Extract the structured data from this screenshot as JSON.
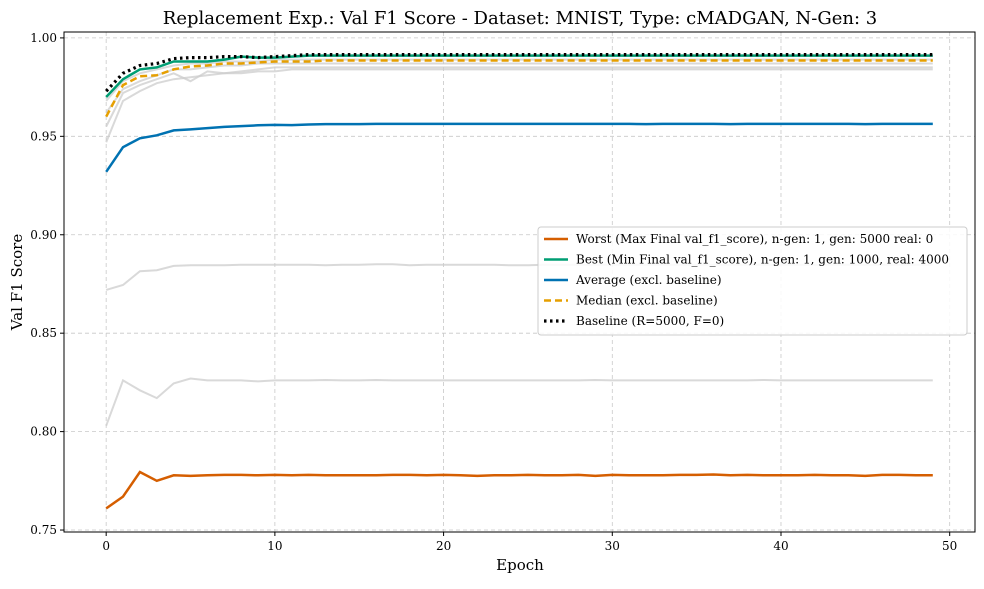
{
  "chart_data": {
    "type": "line",
    "title": "Replacement Exp.: Val F1 Score - Dataset: MNIST, Type: cMADGAN, N-Gen: 3",
    "xlabel": "Epoch",
    "ylabel": "Val F1 Score",
    "xlim": [
      -2.5,
      51.5
    ],
    "ylim": [
      0.749,
      1.003
    ],
    "xticks": [
      0,
      10,
      20,
      30,
      40,
      50
    ],
    "xtick_labels": [
      "0",
      "10",
      "20",
      "30",
      "40",
      "50"
    ],
    "yticks": [
      0.75,
      0.8,
      0.85,
      0.9,
      0.95,
      1.0
    ],
    "ytick_labels": [
      "0.75",
      "0.80",
      "0.85",
      "0.90",
      "0.95",
      "1.00"
    ],
    "grid": true,
    "legend_position": "center-right",
    "colors": {
      "worst": "#d55e00",
      "best": "#009e73",
      "average": "#0072b2",
      "median": "#e69f00",
      "baseline": "#000000",
      "background_runs": "#cccccc"
    },
    "x": [
      0,
      1,
      2,
      3,
      4,
      5,
      6,
      7,
      8,
      9,
      10,
      11,
      12,
      13,
      14,
      15,
      16,
      17,
      18,
      19,
      20,
      21,
      22,
      23,
      24,
      25,
      26,
      27,
      28,
      29,
      30,
      31,
      32,
      33,
      34,
      35,
      36,
      37,
      38,
      39,
      40,
      41,
      42,
      43,
      44,
      45,
      46,
      47,
      48,
      49
    ],
    "background_series": [
      {
        "values": [
          0.803,
          0.826,
          0.821,
          0.817,
          0.8245,
          0.827,
          0.826,
          0.826,
          0.826,
          0.8255,
          0.826,
          0.826,
          0.826,
          0.8262,
          0.826,
          0.826,
          0.8262,
          0.826,
          0.826,
          0.826,
          0.826,
          0.826,
          0.826,
          0.826,
          0.826,
          0.826,
          0.826,
          0.826,
          0.826,
          0.8262,
          0.826,
          0.826,
          0.826,
          0.826,
          0.826,
          0.826,
          0.826,
          0.826,
          0.826,
          0.8262,
          0.826,
          0.826,
          0.826,
          0.826,
          0.826,
          0.826,
          0.826,
          0.826,
          0.826,
          0.826
        ]
      },
      {
        "values": [
          0.872,
          0.8745,
          0.8815,
          0.882,
          0.8842,
          0.8845,
          0.8845,
          0.8845,
          0.8848,
          0.8848,
          0.8848,
          0.8848,
          0.8848,
          0.8845,
          0.8848,
          0.8848,
          0.885,
          0.885,
          0.8845,
          0.8848,
          0.8848,
          0.8848,
          0.8848,
          0.8848,
          0.8845,
          0.8845,
          0.8848,
          0.8848,
          0.8848,
          0.8848,
          0.8848,
          0.8848,
          0.8848,
          0.8848,
          0.8848,
          0.8848,
          0.8848,
          0.8848,
          0.8848,
          0.8848,
          0.8848,
          0.8848,
          0.8848,
          0.8848,
          0.8848,
          0.8848,
          0.8848,
          0.8848,
          0.8848,
          0.8848
        ]
      },
      {
        "values": [
          0.947,
          0.968,
          0.973,
          0.977,
          0.979,
          0.98,
          0.981,
          0.982,
          0.982,
          0.983,
          0.983,
          0.984,
          0.984,
          0.984,
          0.984,
          0.984,
          0.984,
          0.984,
          0.984,
          0.984,
          0.984,
          0.984,
          0.984,
          0.984,
          0.984,
          0.984,
          0.984,
          0.984,
          0.984,
          0.984,
          0.984,
          0.984,
          0.984,
          0.984,
          0.984,
          0.984,
          0.984,
          0.984,
          0.984,
          0.984,
          0.984,
          0.984,
          0.984,
          0.984,
          0.984,
          0.984,
          0.984,
          0.984,
          0.984,
          0.984
        ]
      },
      {
        "values": [
          0.955,
          0.972,
          0.976,
          0.979,
          0.982,
          0.978,
          0.983,
          0.982,
          0.983,
          0.984,
          0.985,
          0.985,
          0.985,
          0.985,
          0.985,
          0.985,
          0.985,
          0.985,
          0.985,
          0.985,
          0.985,
          0.985,
          0.985,
          0.985,
          0.985,
          0.985,
          0.985,
          0.985,
          0.985,
          0.985,
          0.985,
          0.985,
          0.985,
          0.985,
          0.985,
          0.985,
          0.985,
          0.985,
          0.985,
          0.985,
          0.985,
          0.985,
          0.985,
          0.985,
          0.985,
          0.985,
          0.985,
          0.985,
          0.985,
          0.985
        ]
      },
      {
        "values": [
          0.962,
          0.974,
          0.978,
          0.981,
          0.984,
          0.984,
          0.985,
          0.986,
          0.986,
          0.987,
          0.987,
          0.987,
          0.987,
          0.987,
          0.987,
          0.987,
          0.987,
          0.987,
          0.987,
          0.987,
          0.987,
          0.987,
          0.987,
          0.987,
          0.987,
          0.987,
          0.987,
          0.987,
          0.987,
          0.987,
          0.987,
          0.987,
          0.987,
          0.987,
          0.987,
          0.987,
          0.987,
          0.987,
          0.987,
          0.987,
          0.987,
          0.987,
          0.987,
          0.987,
          0.987,
          0.987,
          0.987,
          0.987,
          0.987,
          0.987
        ]
      },
      {
        "values": [
          0.968,
          0.978,
          0.982,
          0.984,
          0.986,
          0.987,
          0.987,
          0.988,
          0.988,
          0.988,
          0.989,
          0.989,
          0.989,
          0.989,
          0.989,
          0.989,
          0.989,
          0.989,
          0.989,
          0.989,
          0.989,
          0.989,
          0.989,
          0.989,
          0.989,
          0.989,
          0.989,
          0.989,
          0.989,
          0.989,
          0.989,
          0.989,
          0.989,
          0.989,
          0.989,
          0.989,
          0.989,
          0.989,
          0.989,
          0.989,
          0.989,
          0.989,
          0.989,
          0.989,
          0.989,
          0.989,
          0.989,
          0.989,
          0.989,
          0.989
        ]
      }
    ],
    "series": [
      {
        "key": "worst",
        "name": "Worst (Max Final val_f1_score), n-gen: 1, gen: 5000 real: 0",
        "style": "solid",
        "values": [
          0.761,
          0.767,
          0.7795,
          0.775,
          0.7778,
          0.7775,
          0.7778,
          0.778,
          0.778,
          0.7778,
          0.778,
          0.7778,
          0.778,
          0.7778,
          0.7778,
          0.7778,
          0.7778,
          0.778,
          0.778,
          0.7778,
          0.778,
          0.7778,
          0.7775,
          0.7778,
          0.7778,
          0.778,
          0.7778,
          0.7778,
          0.778,
          0.7775,
          0.778,
          0.7778,
          0.7778,
          0.7778,
          0.778,
          0.778,
          0.7782,
          0.7778,
          0.778,
          0.7778,
          0.7778,
          0.7778,
          0.778,
          0.7778,
          0.7778,
          0.7775,
          0.778,
          0.778,
          0.7778,
          0.7778
        ]
      },
      {
        "key": "best",
        "name": "Best (Min Final val_f1_score), n-gen: 1, gen: 1000, real: 4000",
        "style": "solid",
        "values": [
          0.97,
          0.979,
          0.984,
          0.985,
          0.988,
          0.988,
          0.988,
          0.989,
          0.9905,
          0.99,
          0.99,
          0.9905,
          0.991,
          0.991,
          0.991,
          0.991,
          0.991,
          0.991,
          0.991,
          0.991,
          0.991,
          0.991,
          0.991,
          0.991,
          0.991,
          0.991,
          0.991,
          0.991,
          0.991,
          0.991,
          0.991,
          0.991,
          0.991,
          0.991,
          0.991,
          0.991,
          0.991,
          0.991,
          0.991,
          0.991,
          0.991,
          0.991,
          0.991,
          0.991,
          0.991,
          0.991,
          0.991,
          0.991,
          0.991,
          0.991
        ]
      },
      {
        "key": "average",
        "name": "Average (excl. baseline)",
        "style": "solid",
        "values": [
          0.932,
          0.9445,
          0.949,
          0.9505,
          0.953,
          0.9535,
          0.9542,
          0.9548,
          0.9552,
          0.9556,
          0.9558,
          0.9557,
          0.956,
          0.9562,
          0.9562,
          0.9562,
          0.9563,
          0.9563,
          0.9563,
          0.9563,
          0.9563,
          0.9563,
          0.9563,
          0.9563,
          0.9563,
          0.9563,
          0.9563,
          0.9563,
          0.9563,
          0.9563,
          0.9563,
          0.9563,
          0.9562,
          0.9563,
          0.9563,
          0.9563,
          0.9563,
          0.9562,
          0.9563,
          0.9563,
          0.9563,
          0.9563,
          0.9563,
          0.9563,
          0.9563,
          0.9562,
          0.9563,
          0.9563,
          0.9563,
          0.9563
        ]
      },
      {
        "key": "median",
        "name": "Median (excl. baseline)",
        "style": "dashed",
        "values": [
          0.96,
          0.976,
          0.9805,
          0.981,
          0.984,
          0.9855,
          0.986,
          0.987,
          0.987,
          0.9875,
          0.988,
          0.988,
          0.988,
          0.9885,
          0.9885,
          0.9885,
          0.9885,
          0.9885,
          0.9885,
          0.9885,
          0.9885,
          0.9885,
          0.9885,
          0.9885,
          0.9885,
          0.9885,
          0.9885,
          0.9885,
          0.9885,
          0.9885,
          0.9885,
          0.9885,
          0.9885,
          0.9885,
          0.9885,
          0.9885,
          0.9885,
          0.9885,
          0.9885,
          0.9885,
          0.9885,
          0.9885,
          0.9885,
          0.9885,
          0.9885,
          0.9885,
          0.9885,
          0.9885,
          0.9885,
          0.9885
        ]
      },
      {
        "key": "baseline",
        "name": "Baseline (R=5000, F=0)",
        "style": "dotted",
        "values": [
          0.973,
          0.982,
          0.986,
          0.987,
          0.9895,
          0.99,
          0.99,
          0.9905,
          0.9905,
          0.99,
          0.9905,
          0.991,
          0.9915,
          0.9915,
          0.9915,
          0.9915,
          0.9915,
          0.9915,
          0.9915,
          0.9915,
          0.9915,
          0.9915,
          0.9915,
          0.9915,
          0.9915,
          0.9915,
          0.9915,
          0.9915,
          0.9915,
          0.9915,
          0.9915,
          0.9915,
          0.9915,
          0.9915,
          0.9915,
          0.9915,
          0.9915,
          0.9915,
          0.9915,
          0.9915,
          0.9915,
          0.9915,
          0.9915,
          0.9915,
          0.9915,
          0.9915,
          0.9915,
          0.9915,
          0.9915,
          0.9915
        ]
      }
    ]
  }
}
